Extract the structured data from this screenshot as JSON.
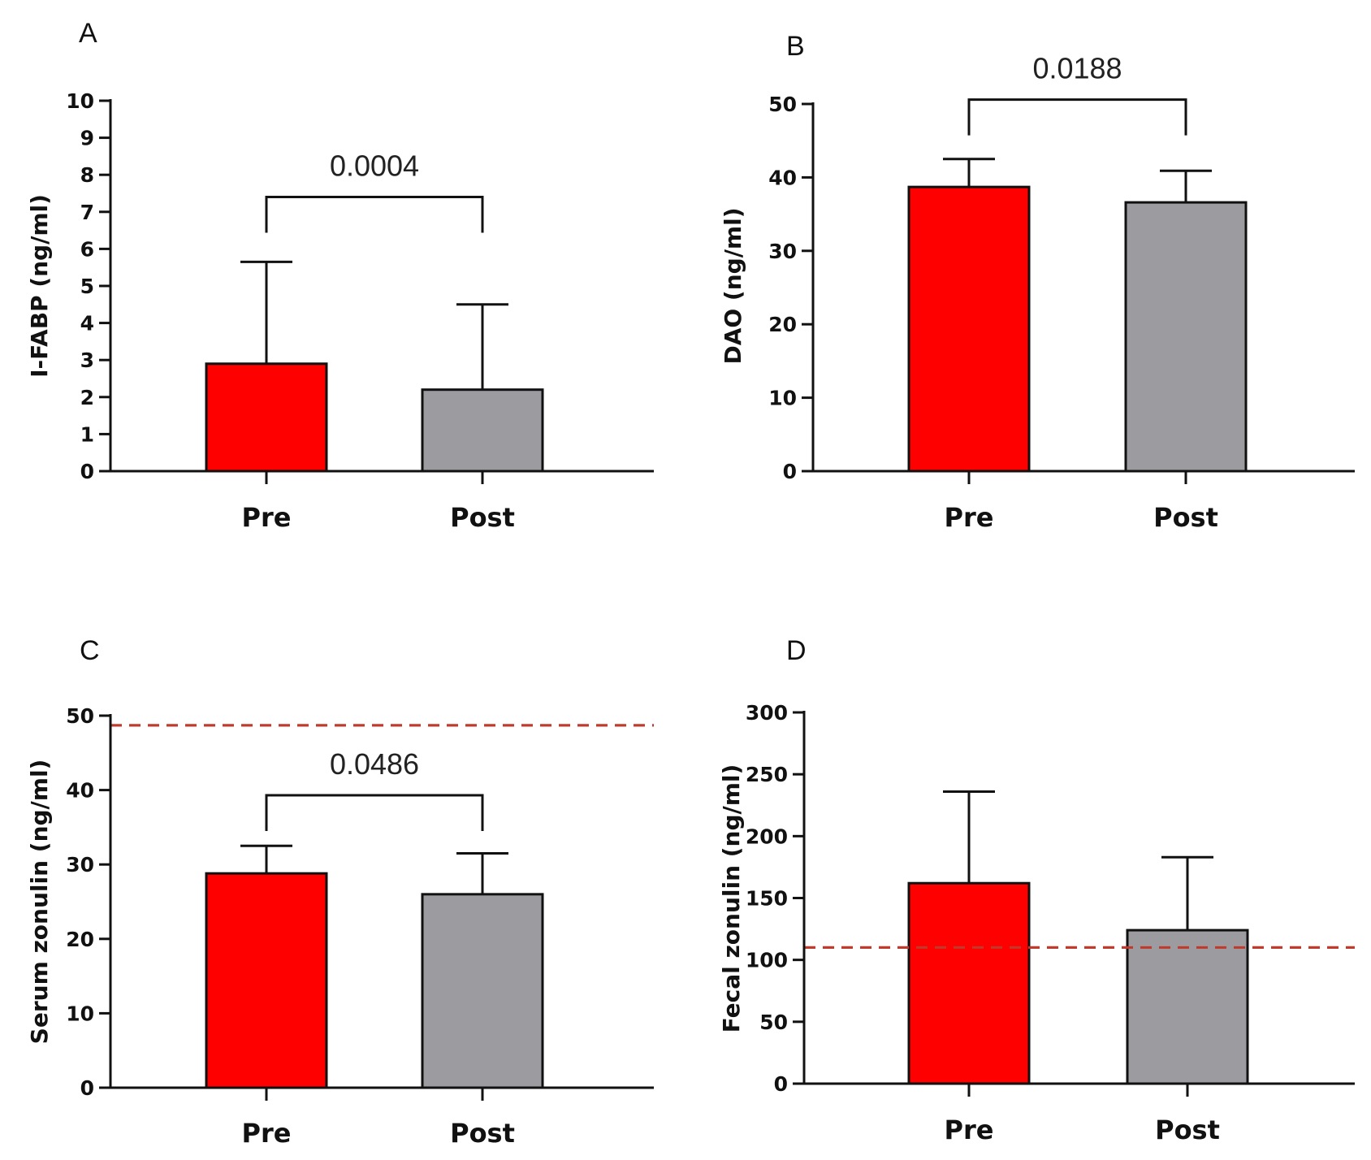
{
  "colors": {
    "pre": "#ff0000",
    "post": "#9c9ca0",
    "reference_line": "#c0392b"
  },
  "chart_data": [
    {
      "panel": "A",
      "type": "bar",
      "categories": [
        "Pre",
        "Post"
      ],
      "values": [
        2.9,
        2.2
      ],
      "error_upper": [
        5.65,
        4.5
      ],
      "ylabel": "I-FABP (ng/ml)",
      "ylim": [
        0,
        10
      ],
      "yticks": [
        "0",
        "1",
        "2",
        "3",
        "4",
        "5",
        "6",
        "7",
        "8",
        "9",
        "10"
      ],
      "significance": {
        "label": "0.0004",
        "level": 7.4
      },
      "reference_line": null
    },
    {
      "panel": "B",
      "type": "bar",
      "categories": [
        "Pre",
        "Post"
      ],
      "values": [
        38.7,
        36.6
      ],
      "error_upper": [
        42.5,
        40.9
      ],
      "ylabel": "DAO (ng/ml)",
      "ylim": [
        0,
        50
      ],
      "yticks": [
        "0",
        "10",
        "20",
        "30",
        "40",
        "50"
      ],
      "significance": {
        "label": "0.0188",
        "level": 50.6
      },
      "reference_line": null
    },
    {
      "panel": "C",
      "type": "bar",
      "categories": [
        "Pre",
        "Post"
      ],
      "values": [
        28.8,
        26
      ],
      "error_upper": [
        32.5,
        31.5
      ],
      "ylabel": "Serum zonulin  (ng/ml)",
      "ylim": [
        0,
        50
      ],
      "yticks": [
        "0",
        "10",
        "20",
        "30",
        "40",
        "50"
      ],
      "significance": {
        "label": "0.0486",
        "level": 39.3
      },
      "reference_line": 48.7
    },
    {
      "panel": "D",
      "type": "bar",
      "categories": [
        "Pre",
        "Post"
      ],
      "values": [
        162,
        124
      ],
      "error_upper": [
        236,
        183
      ],
      "ylabel": "Fecal zonulin  (ng/ml)",
      "ylim": [
        0,
        300
      ],
      "yticks": [
        "0",
        "50",
        "100",
        "150",
        "200",
        "250",
        "300"
      ],
      "significance": null,
      "reference_line": 110
    }
  ]
}
